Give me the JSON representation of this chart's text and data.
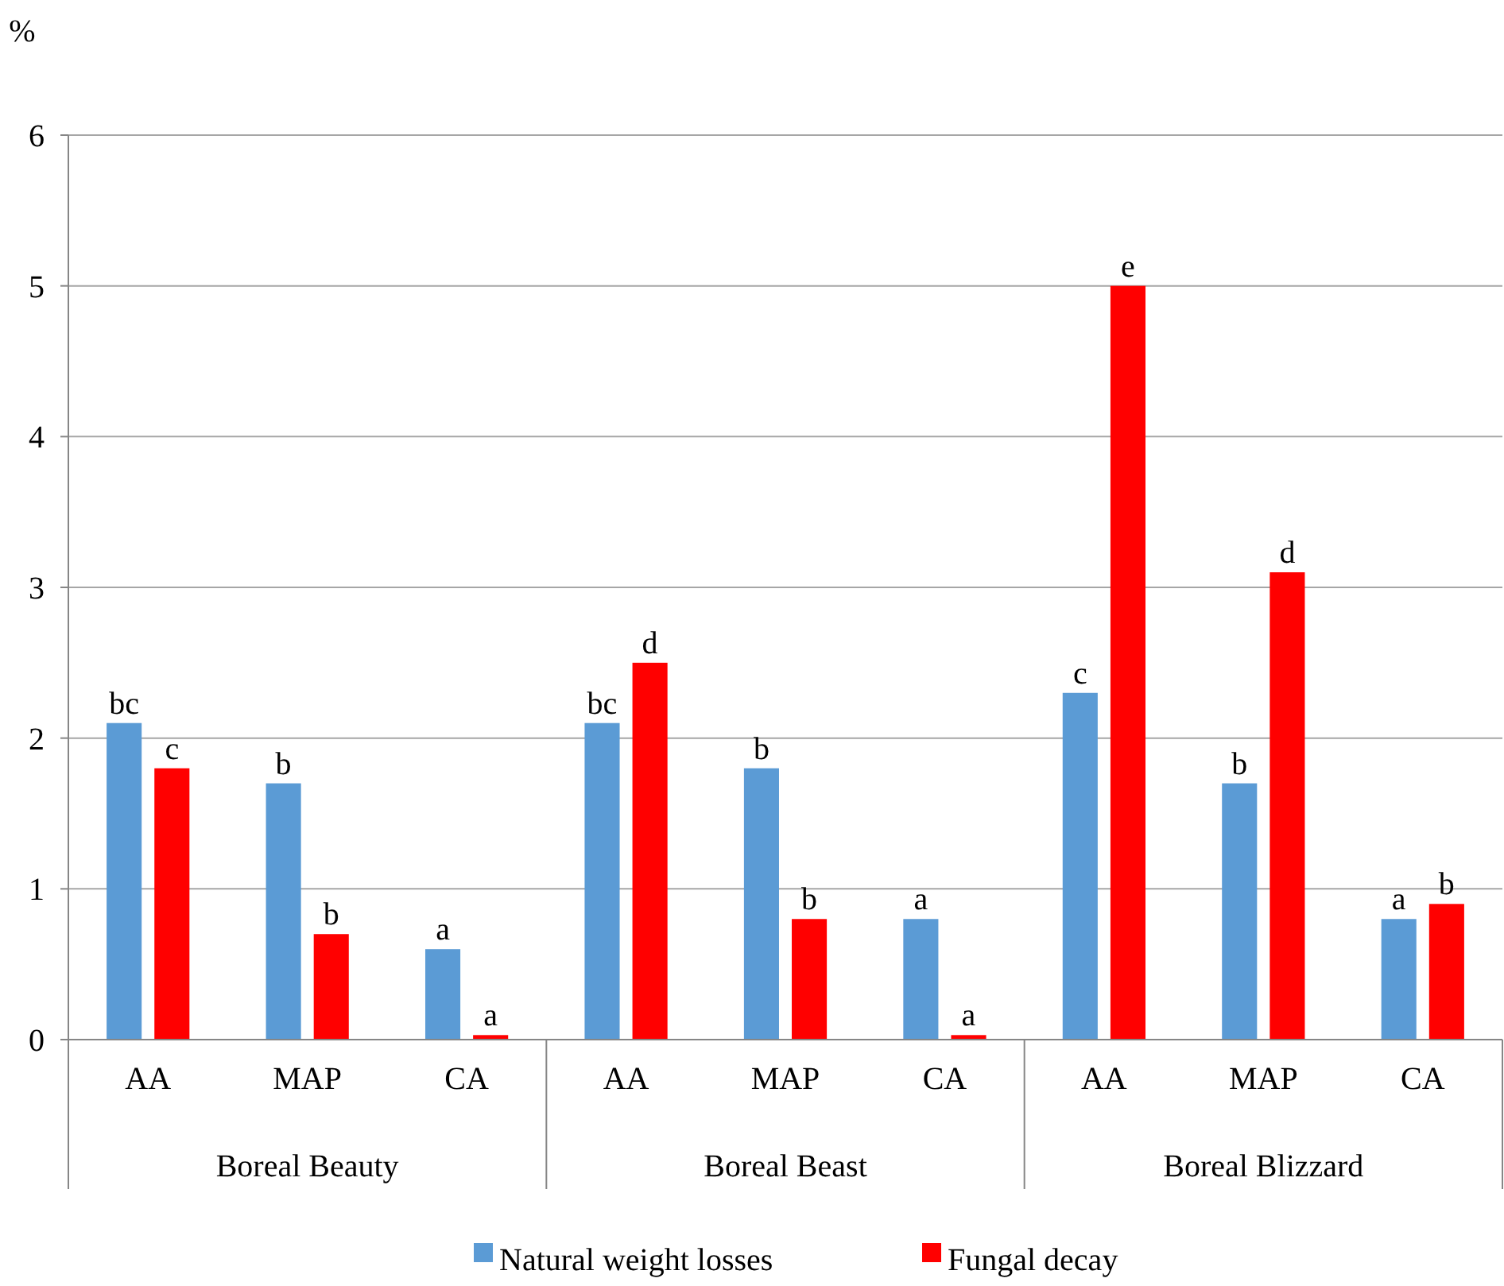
{
  "chart_data": {
    "type": "bar",
    "ylabel": "%",
    "categories": [
      "AA",
      "MAP",
      "CA",
      "AA",
      "MAP",
      "CA",
      "AA",
      "MAP",
      "CA"
    ],
    "series": [
      {
        "name": "Natural weight losses",
        "color": "#5b9bd5",
        "values": [
          2.1,
          1.7,
          0.6,
          2.1,
          1.8,
          0.8,
          2.3,
          1.7,
          0.8
        ],
        "value_labels": [
          "bc",
          "b",
          "a",
          "bc",
          "b",
          "a",
          "c",
          "b",
          "a"
        ]
      },
      {
        "name": "Fungal decay",
        "color": "#ff0000",
        "values": [
          1.8,
          0.7,
          0.03,
          2.5,
          0.8,
          0.03,
          5.0,
          3.1,
          0.9
        ],
        "value_labels": [
          "c",
          "b",
          "a",
          "d",
          "b",
          "a",
          "e",
          "d",
          "b"
        ]
      }
    ],
    "ylim": [
      0,
      6
    ],
    "yticks": [
      0,
      1,
      2,
      3,
      4,
      5,
      6
    ],
    "grid": "y",
    "legend": "bottom",
    "annotations": [
      "Boreal Beauty",
      "Boreal Beast",
      "Boreal Blizzard"
    ]
  }
}
